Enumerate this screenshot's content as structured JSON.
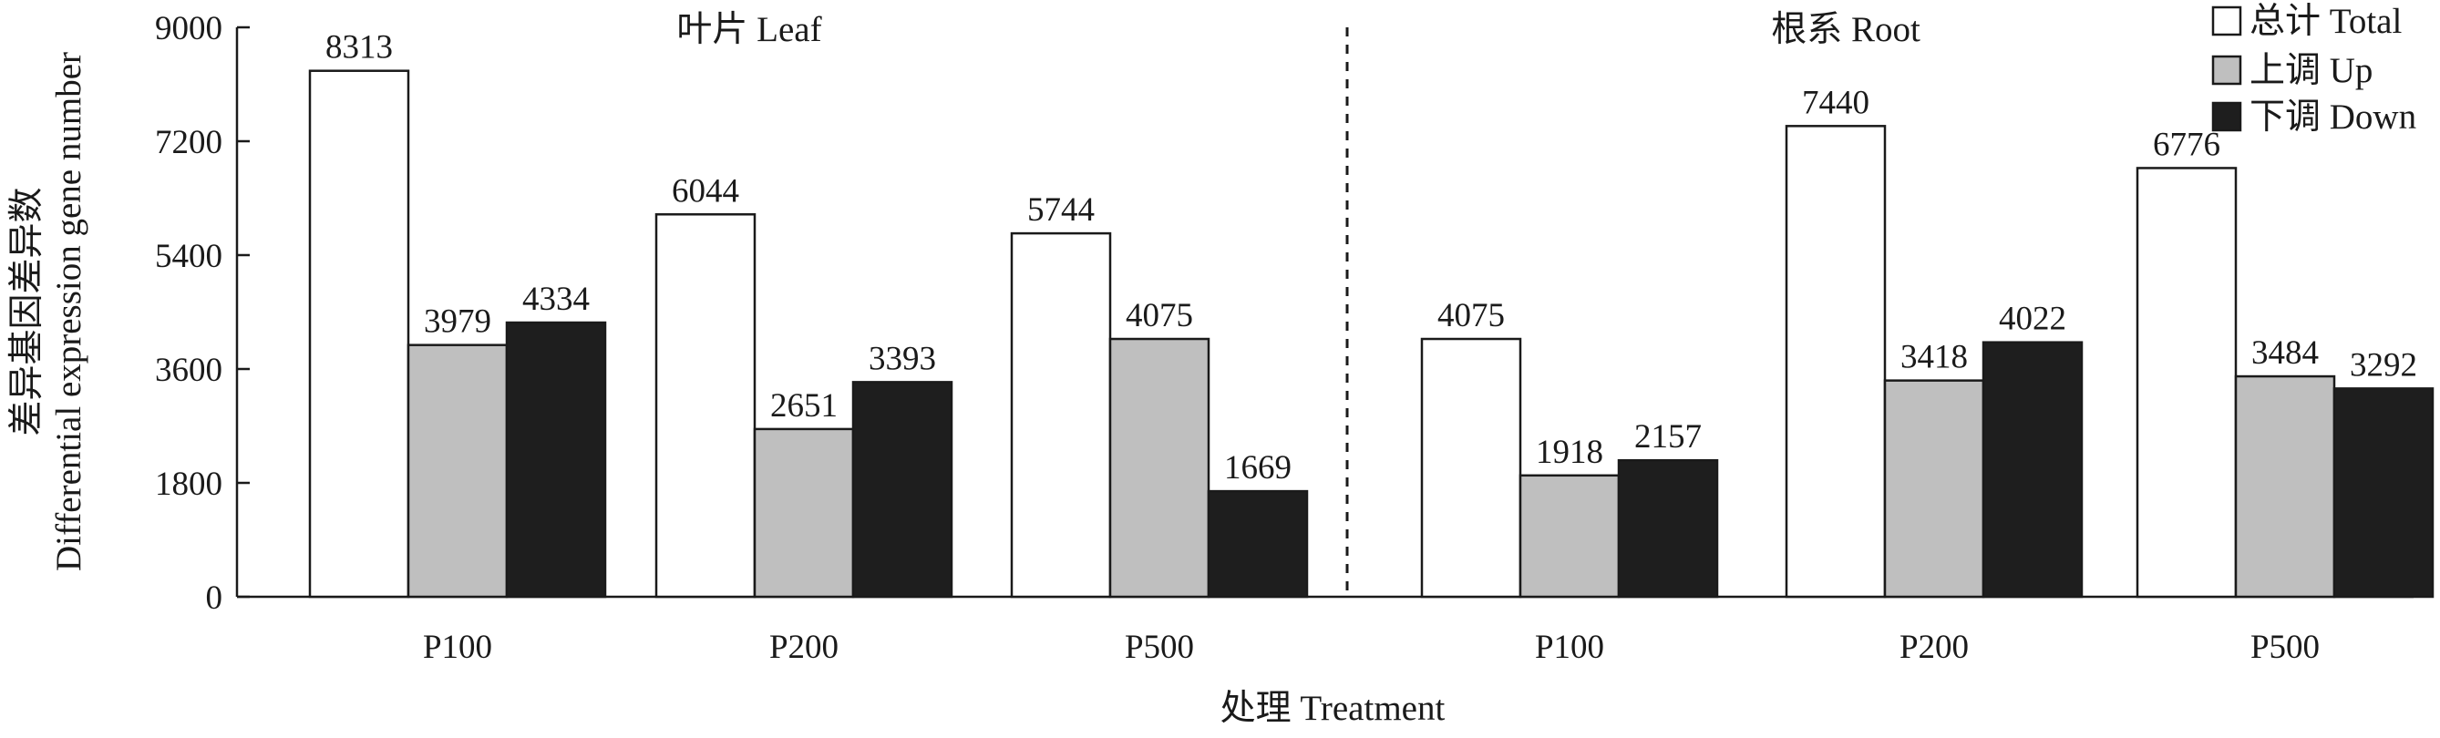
{
  "chart_data": {
    "type": "bar",
    "ylabel": [
      "差异基因差异数",
      "Differential expression gene number"
    ],
    "xlabel": "处理 Treatment",
    "ylim": [
      0,
      9000
    ],
    "yticks": [
      0,
      1800,
      3600,
      5400,
      7200,
      9000
    ],
    "legend_position": "top-right",
    "groups": [
      {
        "title": "叶片 Leaf",
        "categories": [
          "P100",
          "P200",
          "P500"
        ]
      },
      {
        "title": "根系 Root",
        "categories": [
          "P100",
          "P200",
          "P500"
        ]
      }
    ],
    "series": [
      {
        "name": "总计 Total",
        "color": "#ffffff",
        "values": [
          8313,
          6044,
          5744,
          4075,
          7440,
          6776
        ]
      },
      {
        "name": "上调 Up",
        "color": "#bfbfbf",
        "values": [
          3979,
          2651,
          4075,
          1918,
          3418,
          3484
        ]
      },
      {
        "name": "下调 Down",
        "color": "#1e1e1e",
        "values": [
          4334,
          3393,
          1669,
          2157,
          4022,
          3292
        ]
      }
    ]
  }
}
